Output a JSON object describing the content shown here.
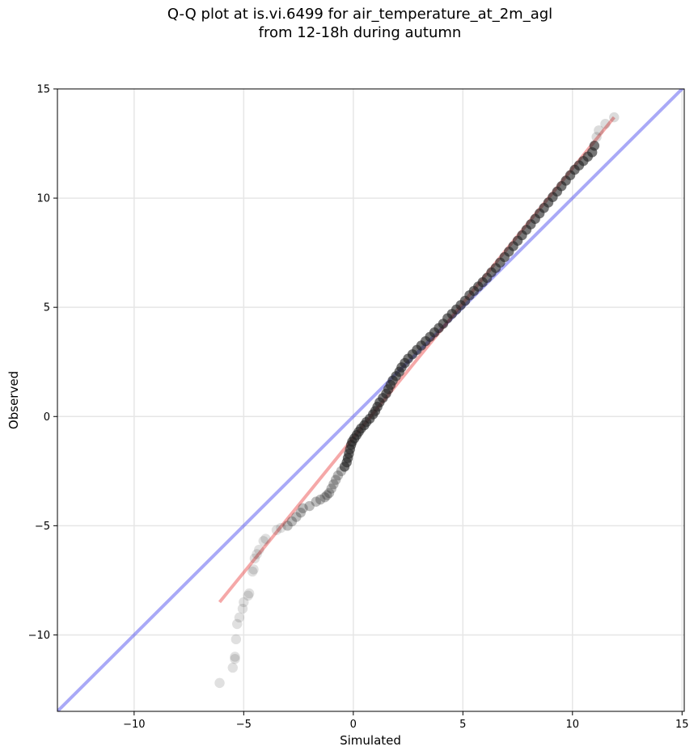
{
  "chart_data": {
    "type": "scatter",
    "title_line1": "Q-Q plot at is.vi.6499 for air_temperature_at_2m_agl",
    "title_line2": "from 12-18h during autumn",
    "xlabel": "Simulated",
    "ylabel": "Observed",
    "xlim": [
      -13.5,
      15.1
    ],
    "ylim": [
      -13.5,
      15
    ],
    "xticks": [
      -10,
      -5,
      0,
      5,
      10,
      15
    ],
    "yticks": [
      -10,
      -5,
      0,
      5,
      10,
      15
    ],
    "xtick_labels": [
      "−10",
      "−5",
      "0",
      "5",
      "10",
      "15"
    ],
    "ytick_labels": [
      "−10",
      "−5",
      "0",
      "5",
      "10",
      "15"
    ],
    "grid": true,
    "quantile_points": [
      [
        -6.1,
        -12.2
      ],
      [
        -5.5,
        -11.5
      ],
      [
        -5.4,
        -11.1
      ],
      [
        -5.4,
        -11.0
      ],
      [
        -5.35,
        -10.2
      ],
      [
        -5.3,
        -9.5
      ],
      [
        -5.2,
        -9.2
      ],
      [
        -5.05,
        -8.8
      ],
      [
        -5.0,
        -8.5
      ],
      [
        -4.8,
        -8.2
      ],
      [
        -4.75,
        -8.1
      ],
      [
        -4.6,
        -7.1
      ],
      [
        -4.55,
        -7.0
      ],
      [
        -4.5,
        -6.5
      ],
      [
        -4.4,
        -6.3
      ],
      [
        -4.3,
        -6.1
      ],
      [
        -4.1,
        -5.7
      ],
      [
        -4.0,
        -5.6
      ],
      [
        -3.5,
        -5.2
      ],
      [
        -3.3,
        -5.1
      ],
      [
        -3.0,
        -5.0
      ],
      [
        -2.8,
        -4.8
      ],
      [
        -2.6,
        -4.6
      ],
      [
        -2.4,
        -4.4
      ],
      [
        -2.3,
        -4.2
      ],
      [
        -2.0,
        -4.1
      ],
      [
        -1.7,
        -3.9
      ],
      [
        -1.5,
        -3.8
      ],
      [
        -1.3,
        -3.7
      ],
      [
        -1.1,
        -3.5
      ],
      [
        -1.2,
        -3.6
      ],
      [
        -1.0,
        -3.3
      ],
      [
        -0.9,
        -3.1
      ],
      [
        -0.8,
        -2.9
      ],
      [
        -0.7,
        -2.7
      ],
      [
        -0.55,
        -2.5
      ],
      [
        -0.4,
        -2.3
      ],
      [
        -0.3,
        -2.1
      ],
      [
        -0.25,
        -1.9
      ],
      [
        -0.2,
        -1.7
      ],
      [
        -0.15,
        -1.5
      ],
      [
        -0.1,
        -1.3
      ],
      [
        -0.05,
        -1.15
      ],
      [
        0.05,
        -1.0
      ],
      [
        0.15,
        -0.85
      ],
      [
        0.25,
        -0.7
      ],
      [
        0.35,
        -0.55
      ],
      [
        0.5,
        -0.4
      ],
      [
        0.6,
        -0.25
      ],
      [
        0.75,
        -0.1
      ],
      [
        0.9,
        0.1
      ],
      [
        1.0,
        0.25
      ],
      [
        1.1,
        0.45
      ],
      [
        1.2,
        0.65
      ],
      [
        1.35,
        0.85
      ],
      [
        1.5,
        1.05
      ],
      [
        1.6,
        1.25
      ],
      [
        1.7,
        1.45
      ],
      [
        1.8,
        1.65
      ],
      [
        1.95,
        1.85
      ],
      [
        2.1,
        2.05
      ],
      [
        2.2,
        2.25
      ],
      [
        2.35,
        2.45
      ],
      [
        2.5,
        2.65
      ],
      [
        2.7,
        2.85
      ],
      [
        2.9,
        3.05
      ],
      [
        3.1,
        3.25
      ],
      [
        3.3,
        3.45
      ],
      [
        3.5,
        3.65
      ],
      [
        3.7,
        3.85
      ],
      [
        3.9,
        4.05
      ],
      [
        4.1,
        4.25
      ],
      [
        4.3,
        4.5
      ],
      [
        4.5,
        4.7
      ],
      [
        4.7,
        4.9
      ],
      [
        4.9,
        5.1
      ],
      [
        5.1,
        5.3
      ],
      [
        5.3,
        5.55
      ],
      [
        5.5,
        5.75
      ],
      [
        5.7,
        5.95
      ],
      [
        5.9,
        6.15
      ],
      [
        6.1,
        6.35
      ],
      [
        6.3,
        6.6
      ],
      [
        6.5,
        6.8
      ],
      [
        6.7,
        7.05
      ],
      [
        6.9,
        7.3
      ],
      [
        7.1,
        7.55
      ],
      [
        7.3,
        7.8
      ],
      [
        7.5,
        8.05
      ],
      [
        7.7,
        8.3
      ],
      [
        7.9,
        8.55
      ],
      [
        8.1,
        8.8
      ],
      [
        8.3,
        9.05
      ],
      [
        8.5,
        9.3
      ],
      [
        8.7,
        9.55
      ],
      [
        8.9,
        9.8
      ],
      [
        9.1,
        10.05
      ],
      [
        9.3,
        10.3
      ],
      [
        9.5,
        10.55
      ],
      [
        9.7,
        10.8
      ],
      [
        9.9,
        11.05
      ],
      [
        10.1,
        11.3
      ],
      [
        10.3,
        11.5
      ],
      [
        10.5,
        11.7
      ],
      [
        10.7,
        11.9
      ],
      [
        10.9,
        12.1
      ],
      [
        11.0,
        12.4
      ],
      [
        11.1,
        12.8
      ],
      [
        11.2,
        13.1
      ],
      [
        11.5,
        13.4
      ],
      [
        11.9,
        13.7
      ]
    ],
    "reference_line_1to1": {
      "color": "#4040ee",
      "x": [
        -13.5,
        15.1
      ],
      "y": [
        -13.5,
        15.1
      ]
    },
    "fit_line": {
      "color": "#e83030",
      "x": [
        -6.1,
        11.9
      ],
      "y": [
        -8.5,
        13.7
      ]
    },
    "point_color": "#222222"
  }
}
